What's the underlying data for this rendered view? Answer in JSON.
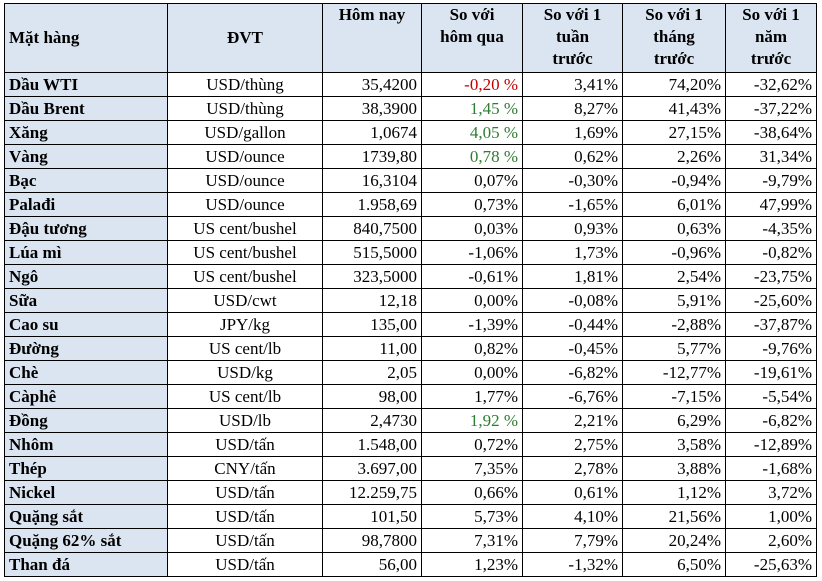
{
  "headers": [
    "Mặt hàng",
    "ĐVT",
    "Hôm nay",
    "So với\nhôm qua",
    "So với 1\ntuần\ntrước",
    "So với 1\ntháng\ntrước",
    "So với 1\nnăm\ntrước"
  ],
  "rows": [
    {
      "item": "Dầu WTI",
      "unit": "USD/thùng",
      "today": "35,4200",
      "d1": "-0,20 %",
      "w1": "3,41%",
      "m1": "74,20%",
      "y1": "-32,62%",
      "d1_color": "neg"
    },
    {
      "item": "Dầu Brent",
      "unit": "USD/thùng",
      "today": "38,3900",
      "d1": "1,45 %",
      "w1": "8,27%",
      "m1": "41,43%",
      "y1": "-37,22%",
      "d1_color": "pos"
    },
    {
      "item": "Xăng",
      "unit": "USD/gallon",
      "today": "1,0674",
      "d1": "4,05 %",
      "w1": "1,69%",
      "m1": "27,15%",
      "y1": "-38,64%",
      "d1_color": "pos"
    },
    {
      "item": "Vàng",
      "unit": "USD/ounce",
      "today": "1739,80",
      "d1": "0,78 %",
      "w1": "0,62%",
      "m1": "2,26%",
      "y1": "31,34%",
      "d1_color": "pos"
    },
    {
      "item": "Bạc",
      "unit": "USD/ounce",
      "today": "16,3104",
      "d1": "0,07%",
      "w1": "-0,30%",
      "m1": "-0,94%",
      "y1": "-9,79%",
      "d1_color": ""
    },
    {
      "item": "Palađi",
      "unit": "USD/ounce",
      "today": "1.958,69",
      "d1": "0,73%",
      "w1": "-1,65%",
      "m1": "6,01%",
      "y1": "47,99%",
      "d1_color": ""
    },
    {
      "item": "Đậu tương",
      "unit": "US cent/bushel",
      "today": "840,7500",
      "d1": "0,03%",
      "w1": "0,93%",
      "m1": "0,63%",
      "y1": "-4,35%",
      "d1_color": ""
    },
    {
      "item": "Lúa mì",
      "unit": "US cent/bushel",
      "today": "515,5000",
      "d1": "-1,06%",
      "w1": "1,73%",
      "m1": "-0,96%",
      "y1": "-0,82%",
      "d1_color": ""
    },
    {
      "item": "Ngô",
      "unit": "US cent/bushel",
      "today": "323,5000",
      "d1": "-0,61%",
      "w1": "1,81%",
      "m1": "2,54%",
      "y1": "-23,75%",
      "d1_color": ""
    },
    {
      "item": "Sữa",
      "unit": "USD/cwt",
      "today": "12,18",
      "d1": "0,00%",
      "w1": "-0,08%",
      "m1": "5,91%",
      "y1": "-25,60%",
      "d1_color": ""
    },
    {
      "item": "Cao su",
      "unit": "JPY/kg",
      "today": "135,00",
      "d1": "-1,39%",
      "w1": "-0,44%",
      "m1": "-2,88%",
      "y1": "-37,87%",
      "d1_color": ""
    },
    {
      "item": "Đường",
      "unit": "US cent/lb",
      "today": "11,00",
      "d1": "0,82%",
      "w1": "-0,45%",
      "m1": "5,77%",
      "y1": "-9,76%",
      "d1_color": ""
    },
    {
      "item": "Chè",
      "unit": "USD/kg",
      "today": "2,05",
      "d1": "0,00%",
      "w1": "-6,82%",
      "m1": "-12,77%",
      "y1": "-19,61%",
      "d1_color": ""
    },
    {
      "item": "Càphê",
      "unit": "US cent/lb",
      "today": "98,00",
      "d1": "1,77%",
      "w1": "-6,76%",
      "m1": "-7,15%",
      "y1": "-5,54%",
      "d1_color": ""
    },
    {
      "item": "Đồng",
      "unit": "USD/lb",
      "today": "2,4730",
      "d1": "1,92 %",
      "w1": "2,21%",
      "m1": "6,29%",
      "y1": "-6,82%",
      "d1_color": "pos"
    },
    {
      "item": "Nhôm",
      "unit": "USD/tấn",
      "today": "1.548,00",
      "d1": "0,72%",
      "w1": "2,75%",
      "m1": "3,58%",
      "y1": "-12,89%",
      "d1_color": ""
    },
    {
      "item": "Thép",
      "unit": "CNY/tấn",
      "today": "3.697,00",
      "d1": "7,35%",
      "w1": "2,78%",
      "m1": "3,88%",
      "y1": "-1,68%",
      "d1_color": ""
    },
    {
      "item": "Nickel",
      "unit": "USD/tấn",
      "today": "12.259,75",
      "d1": "0,66%",
      "w1": "0,61%",
      "m1": "1,12%",
      "y1": "3,72%",
      "d1_color": ""
    },
    {
      "item": "Quặng sắt",
      "unit": "USD/tấn",
      "today": "101,50",
      "d1": "5,73%",
      "w1": "4,10%",
      "m1": "21,56%",
      "y1": "1,00%",
      "d1_color": ""
    },
    {
      "item": "Quặng 62% sắt",
      "unit": "USD/tấn",
      "today": "98,7800",
      "d1": "7,31%",
      "w1": "7,79%",
      "m1": "20,24%",
      "y1": "2,60%",
      "d1_color": ""
    },
    {
      "item": "Than đá",
      "unit": "USD/tấn",
      "today": "56,00",
      "d1": "1,23%",
      "w1": "-1,32%",
      "m1": "6,50%",
      "y1": "-25,63%",
      "d1_color": ""
    }
  ]
}
